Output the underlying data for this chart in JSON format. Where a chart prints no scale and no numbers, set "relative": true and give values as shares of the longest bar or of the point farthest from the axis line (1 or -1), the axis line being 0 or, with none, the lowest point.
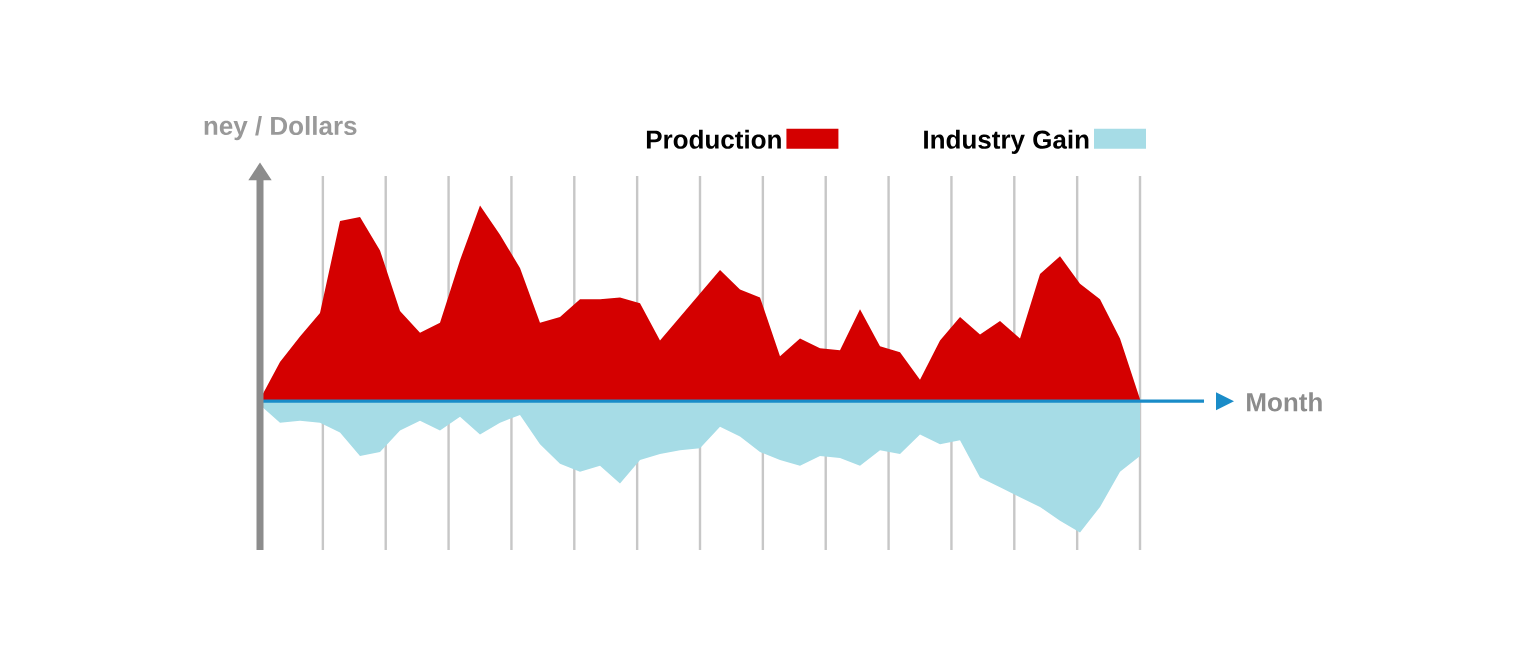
{
  "chart_data": {
    "type": "area",
    "relative": true,
    "ylabel": "ney / Dollars",
    "xlabel": "Month",
    "legend": "top",
    "grid": "x",
    "ref_lines": [
      {
        "axis": "y",
        "value": 0,
        "color": "#1a8cc8"
      }
    ],
    "categories": [
      null,
      null,
      null,
      null,
      null,
      null,
      null,
      null,
      null,
      null,
      null,
      null,
      null,
      null,
      null,
      null,
      null,
      null,
      null,
      null,
      null,
      null,
      null,
      null,
      null,
      null,
      null,
      null,
      null,
      null,
      null,
      null,
      null,
      null,
      null,
      null,
      null,
      null,
      null,
      null,
      null,
      null,
      null,
      null,
      null
    ],
    "series": [
      {
        "name": "Production",
        "color": "#d40000",
        "values": [
          0.01,
          0.2,
          0.33,
          0.45,
          0.92,
          0.94,
          0.77,
          0.46,
          0.35,
          0.4,
          0.72,
          1,
          0.85,
          0.68,
          0.4,
          0.43,
          0.52,
          0.52,
          0.53,
          0.5,
          0.31,
          0.43,
          0.55,
          0.67,
          0.57,
          0.53,
          0.23,
          0.32,
          0.27,
          0.26,
          0.47,
          0.28,
          0.25,
          0.11,
          0.31,
          0.43,
          0.34,
          0.41,
          0.32,
          0.65,
          0.74,
          0.6,
          0.52,
          0.32,
          0.01
        ]
      },
      {
        "name": "Industry Gain",
        "color": "#a6dce6",
        "values": [
          -0.02,
          -0.11,
          -0.1,
          -0.11,
          -0.16,
          -0.28,
          -0.26,
          -0.15,
          -0.1,
          -0.15,
          -0.08,
          -0.17,
          -0.11,
          -0.07,
          -0.22,
          -0.32,
          -0.36,
          -0.33,
          -0.42,
          -0.3,
          -0.27,
          -0.25,
          -0.24,
          -0.13,
          -0.18,
          -0.26,
          -0.3,
          -0.33,
          -0.28,
          -0.29,
          -0.33,
          -0.25,
          -0.27,
          -0.17,
          -0.22,
          -0.2,
          -0.39,
          -0.44,
          -0.49,
          -0.54,
          -0.61,
          -0.67,
          -0.54,
          -0.36,
          -0.28
        ]
      }
    ]
  }
}
